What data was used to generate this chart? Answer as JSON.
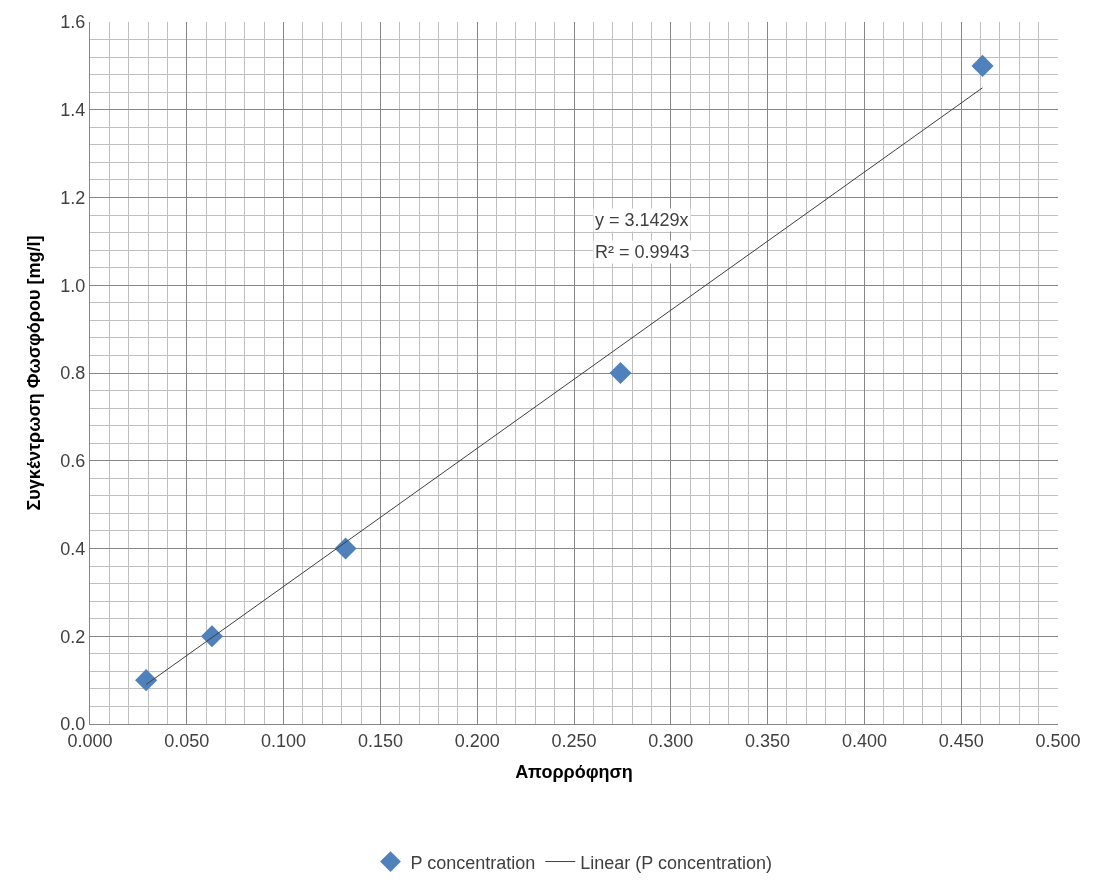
{
  "chart_data": {
    "type": "scatter",
    "xlabel": "Απορρόφηση",
    "ylabel": "Συγκέντρωση Φωσφόρου [mg/l]",
    "series": [
      {
        "name": "P concentration",
        "color": "#4f81bd",
        "marker": "diamond",
        "x": [
          0.029,
          0.063,
          0.132,
          0.274,
          0.461
        ],
        "values": [
          0.1,
          0.2,
          0.4,
          0.8,
          1.5
        ]
      },
      {
        "name": "Linear (P concentration)",
        "type": "line",
        "color": "#404040",
        "marker": "none",
        "line_style": "solid",
        "x": [
          0.029,
          0.461
        ],
        "values": [
          0.09,
          1.45
        ]
      }
    ],
    "annotations": [
      "y = 3.1429x",
      "R² = 0.9943"
    ],
    "xlim": [
      0,
      0.5
    ],
    "ylim": [
      0,
      1.6
    ],
    "xticks": [
      {
        "value": 0,
        "label": "0.000"
      },
      {
        "value": 0.05,
        "label": "0.050"
      },
      {
        "value": 0.1,
        "label": "0.100"
      },
      {
        "value": 0.15,
        "label": "0.150"
      },
      {
        "value": 0.2,
        "label": "0.200"
      },
      {
        "value": 0.25,
        "label": "0.250"
      },
      {
        "value": 0.3,
        "label": "0.300"
      },
      {
        "value": 0.35,
        "label": "0.350"
      },
      {
        "value": 0.4,
        "label": "0.400"
      },
      {
        "value": 0.45,
        "label": "0.450"
      },
      {
        "value": 0.5,
        "label": "0.500"
      }
    ],
    "yticks": [
      {
        "value": 0,
        "label": "0.0"
      },
      {
        "value": 0.2,
        "label": "0.2"
      },
      {
        "value": 0.4,
        "label": "0.4"
      },
      {
        "value": 0.6,
        "label": "0.6"
      },
      {
        "value": 0.8,
        "label": "0.8"
      },
      {
        "value": 1.0,
        "label": "1.0"
      },
      {
        "value": 1.2,
        "label": "1.2"
      },
      {
        "value": 1.4,
        "label": "1.4"
      },
      {
        "value": 1.6,
        "label": "1.6"
      }
    ],
    "grid": true,
    "legend": "bottom"
  }
}
